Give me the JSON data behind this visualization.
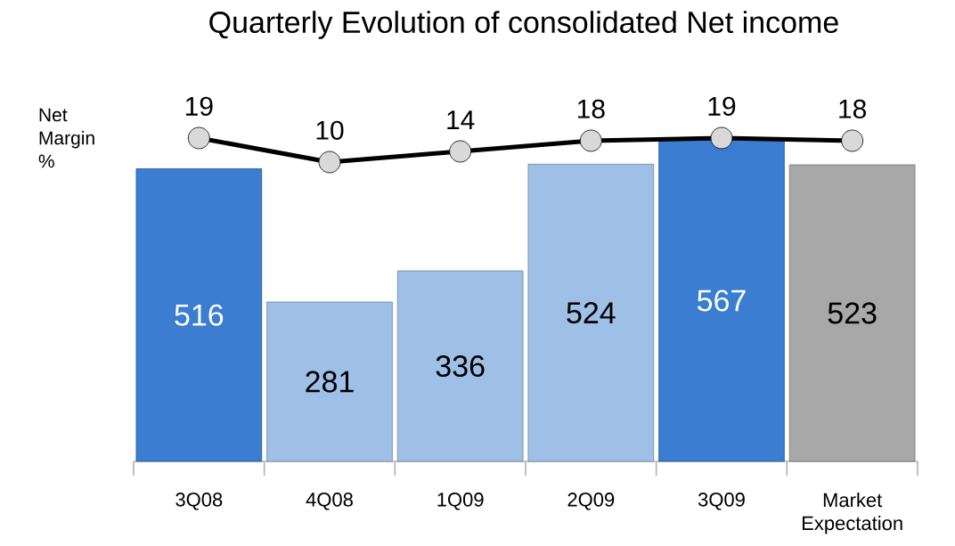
{
  "chart_data": {
    "type": "bar",
    "title": "Quarterly Evolution of consolidated Net income",
    "categories": [
      "3Q08",
      "4Q08",
      "1Q09",
      "2Q09",
      "3Q09",
      "Market Expectation"
    ],
    "data_labels": true,
    "grid": false,
    "series": [
      {
        "colors": [
          "#3b7dd0",
          "#9fc0e6",
          "#9fc0e6",
          "#9fc0e6",
          "#3b7dd0",
          "#a8a8a8"
        ],
        "values": [
          516,
          281,
          336,
          524,
          567,
          523
        ]
      },
      {
        "type": "line",
        "name": "Net Margin %",
        "axis": "y2",
        "color": "#000000",
        "marker": "circle",
        "values": [
          19,
          10,
          14,
          18,
          19,
          18
        ]
      }
    ]
  }
}
